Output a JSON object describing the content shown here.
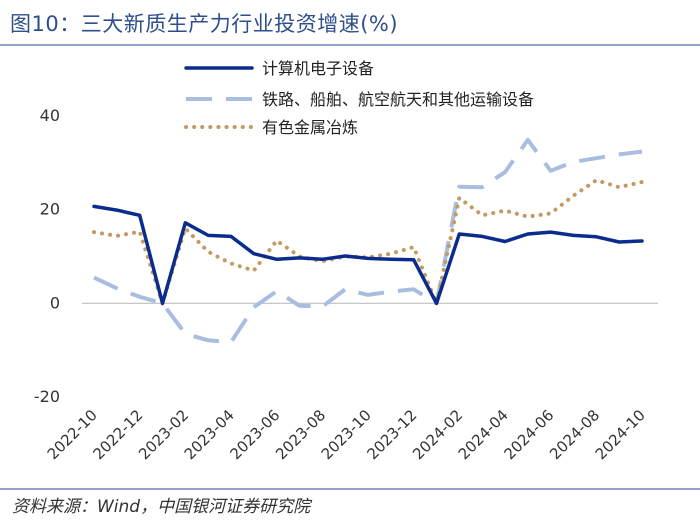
{
  "header": {
    "title": "图10：三大新质生产力行业投资增速(%)"
  },
  "footer": {
    "source": "资料来源：Wind，中国银河证券研究院"
  },
  "chart_data": {
    "type": "line",
    "title": "三大新质生产力行业投资增速(%)",
    "xlabel": "",
    "ylabel": "",
    "ylim": [
      -20,
      40
    ],
    "yticks": [
      -20,
      0,
      20,
      40
    ],
    "x": [
      "2022-10",
      "2022-11",
      "2022-12",
      "2023-01",
      "2023-02",
      "2023-03",
      "2023-04",
      "2023-05",
      "2023-06",
      "2023-07",
      "2023-08",
      "2023-09",
      "2023-10",
      "2023-11",
      "2023-12",
      "2024-01",
      "2024-02",
      "2024-03",
      "2024-04",
      "2024-05",
      "2024-06",
      "2024-07",
      "2024-08",
      "2024-09",
      "2024-10"
    ],
    "xticks": [
      "2022-10",
      "2022-12",
      "2023-02",
      "2023-04",
      "2023-06",
      "2023-08",
      "2023-10",
      "2023-12",
      "2024-02",
      "2024-04",
      "2024-06",
      "2024-08",
      "2024-10"
    ],
    "legend_position": "top",
    "series": [
      {
        "name": "计算机电子设备",
        "color": "#0b2c8c",
        "style": "solid",
        "values": [
          20.7,
          19.9,
          18.8,
          0,
          17.2,
          14.5,
          14.3,
          10.6,
          9.4,
          9.7,
          9.4,
          10.1,
          9.6,
          9.4,
          9.3,
          0,
          14.8,
          14.3,
          13.2,
          14.8,
          15.2,
          14.5,
          14.2,
          13.1,
          13.3
        ]
      },
      {
        "name": "铁路、船舶、航空航天和其他运输设备",
        "color": "#a9bde0",
        "style": "dashed",
        "values": [
          5.5,
          3.2,
          1.4,
          0,
          -6.5,
          -7.9,
          -8.3,
          -0.8,
          2.6,
          -0.5,
          -0.7,
          3.0,
          1.8,
          2.5,
          3.0,
          0,
          24.9,
          24.8,
          28.0,
          34.9,
          28.3,
          30.2,
          31.0,
          31.8,
          32.4
        ]
      },
      {
        "name": "有色金属冶炼",
        "color": "#c59a62",
        "style": "dotted",
        "values": [
          15.2,
          14.4,
          15.3,
          0,
          16.0,
          11.0,
          8.5,
          7.0,
          13.4,
          10.0,
          9.0,
          10.0,
          9.8,
          10.6,
          12.0,
          0,
          22.5,
          18.8,
          19.8,
          18.5,
          19.2,
          23.0,
          26.3,
          24.8,
          25.9
        ]
      }
    ]
  }
}
